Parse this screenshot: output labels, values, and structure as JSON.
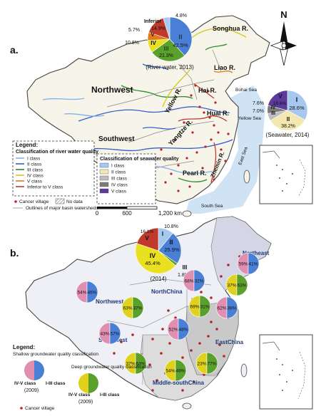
{
  "panel_a": {
    "label": "a.",
    "regions": {
      "northwest": "Northwest",
      "southwest": "Southwest"
    },
    "rivers": {
      "songhua": "Songhua R.",
      "liao": "Liao R.",
      "hai": "Hai R.",
      "yellow": "Yellow R.",
      "huai": "Huai R.",
      "yangtze": "Yangtze R.",
      "pearl": "Pearl R.",
      "zhemin": "Zhemin R."
    },
    "seas": {
      "bohai": "Bohai Sea",
      "yellow": "Yellow Sea",
      "east": "East Sea",
      "south": "South Sea"
    },
    "river_pie": {
      "caption": "(River water, 2013)",
      "inferior_label": "Inferior",
      "slices": [
        {
          "label": "II",
          "value": "42.5%",
          "color": "#4a7fd6"
        },
        {
          "label": "III",
          "value": "21.3%",
          "color": "#5aa02c"
        },
        {
          "label": "IV",
          "value": "10.8%",
          "color": "#e8e020"
        },
        {
          "label": "V",
          "value": "5.7%",
          "color": "#e07b1a"
        },
        {
          "label": "Inferior",
          "value": "14.9%",
          "color": "#c0392b"
        },
        {
          "label": "I",
          "value": "4.8%",
          "color": "#a6c8ef"
        }
      ]
    },
    "sea_pie": {
      "caption": "(Seawater, 2014)",
      "slices": [
        {
          "label": "I",
          "value": "28.6%",
          "color": "#a6c8ef"
        },
        {
          "label": "II",
          "value": "38.2%",
          "color": "#f3e9b0"
        },
        {
          "label": "III",
          "value": "7.0%",
          "color": "#bdbdbd"
        },
        {
          "label": "IV",
          "value": "7.6%",
          "color": "#7a7a7a"
        },
        {
          "label": "V",
          "value": "18.6%",
          "color": "#5b3a9b"
        }
      ]
    },
    "compass": "N",
    "legend": {
      "title": "Legend:",
      "river_heading": "Classification of river water quality",
      "river_items": [
        "I class",
        "II class",
        "III class",
        "IV class",
        "V class",
        "Inferior to V class"
      ],
      "river_colors": [
        "#7fb3ea",
        "#3461c9",
        "#2e8b2e",
        "#d6c61c",
        "#e07b1a",
        "#c0392b"
      ],
      "sea_heading": "Classification of seawater quality",
      "sea_items": [
        "I class",
        "II class",
        "III class",
        "IV class",
        "V class"
      ],
      "sea_colors": [
        "#a6c8ef",
        "#f3e9b0",
        "#bdbdbd",
        "#7a7a7a",
        "#5b3a9b"
      ],
      "cancer_village": "Cancer village",
      "no_data": "No data",
      "outlines": "Outlines of major basin watersheds"
    },
    "scale": {
      "zero": "0",
      "mid": "600",
      "max": "1,200 km"
    }
  },
  "panel_b": {
    "label": "b.",
    "regions": {
      "northwest": "Northwest",
      "northchina": "NorthChina",
      "northeast": "Northeast",
      "southwest": "Southwest",
      "eastchina": "EastChina",
      "middle_south": "Middle-southChina"
    },
    "main_pie": {
      "caption": "(2014)",
      "slices": [
        {
          "label": "I",
          "value": "10.8%",
          "color": "#a6c8ef"
        },
        {
          "label": "II",
          "value": "25.9%",
          "color": "#4a7fd6"
        },
        {
          "label": "III",
          "value": "1.8%",
          "color": "#5aa02c"
        },
        {
          "label": "IV",
          "value": "45.4%",
          "color": "#e8e020"
        },
        {
          "label": "V",
          "value": "16.1%",
          "color": "#c0392b"
        }
      ]
    },
    "shallow_pies": [
      {
        "left": "54%",
        "right": "46%"
      },
      {
        "left": "68%",
        "right": "32%"
      },
      {
        "left": "59%",
        "right": "41%"
      },
      {
        "left": "43%",
        "right": "57%"
      },
      {
        "left": "52%",
        "right": "48%"
      },
      {
        "left": "62%",
        "right": "38%"
      }
    ],
    "deep_pies": [
      {
        "left": "63%",
        "right": "37%"
      },
      {
        "left": "69%",
        "right": "31%"
      },
      {
        "left": "37%",
        "right": "63%"
      },
      {
        "left": "37%",
        "right": "63%"
      },
      {
        "left": "54%",
        "right": "46%"
      },
      {
        "left": "23%",
        "right": "77%"
      }
    ],
    "legend": {
      "title": "Legend:",
      "shallow": "Shallow groundwater quality classification",
      "deep": "Deep groundwater quality classification",
      "left_label": "IV-V class",
      "right_label": "I-III class",
      "year": "(2009)",
      "cancer_village": "Cancer village"
    }
  },
  "colors": {
    "land": "#f7f4ea",
    "sea": "#cfe3f5",
    "border": "#444444",
    "cancer": "#b3262b"
  }
}
